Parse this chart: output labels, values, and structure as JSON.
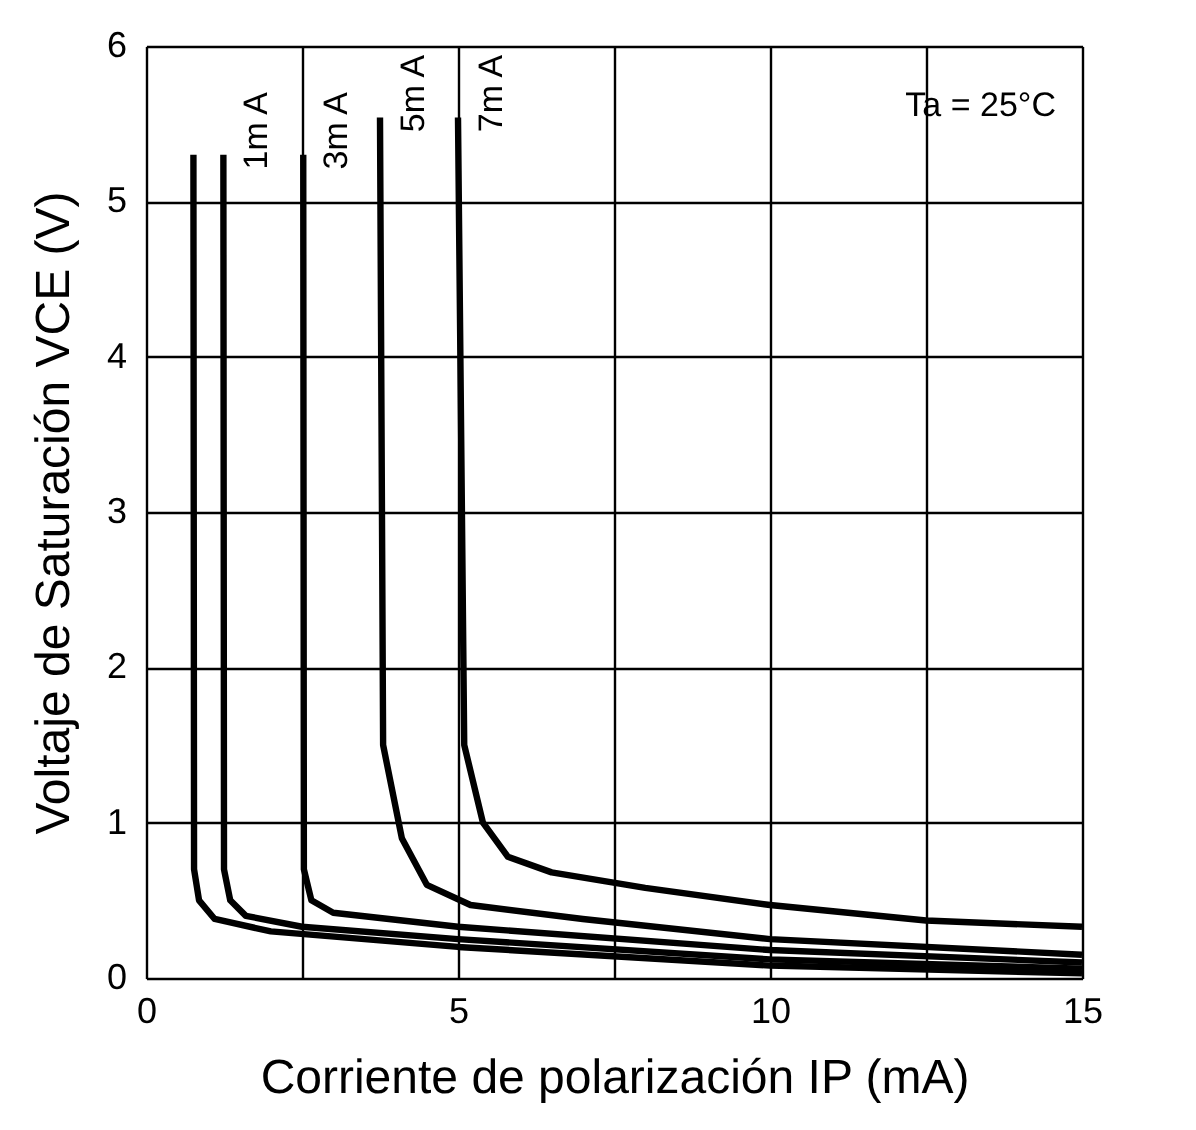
{
  "chart_data": {
    "type": "line",
    "xlabel": "Corriente de polarización IP (mA)",
    "ylabel": "Voltaje de Saturación VCE (V)",
    "annotations": [
      "Ta = 25°C"
    ],
    "xlim": [
      0,
      15
    ],
    "xticks": [
      0,
      {
        "value": 2.5,
        "label": null
      },
      5,
      {
        "value": 7.5,
        "label": null
      },
      10,
      {
        "value": 12.5,
        "label": null
      },
      15
    ],
    "ylim": [
      0,
      6
    ],
    "yticks": [
      0,
      1,
      2,
      3,
      4,
      5,
      6
    ],
    "grid": true,
    "legend": false,
    "marker": "none",
    "line_style": "solid",
    "series": [
      {
        "color": "#000000",
        "x": [
          0.76,
          0.77,
          0.85,
          1.1,
          2,
          5,
          10,
          15
        ],
        "values": [
          5.3,
          0.7,
          0.5,
          0.38,
          0.3,
          0.2,
          0.08,
          0.03
        ]
      },
      {
        "name": "1m A",
        "color": "#000000",
        "x": [
          1.24,
          1.25,
          1.35,
          1.6,
          2.5,
          5,
          10,
          15
        ],
        "values": [
          5.3,
          0.7,
          0.5,
          0.4,
          0.33,
          0.25,
          0.12,
          0.06
        ]
      },
      {
        "name": "3m A",
        "color": "#000000",
        "x": [
          2.52,
          2.53,
          2.65,
          3,
          5,
          10,
          15
        ],
        "values": [
          5.3,
          0.7,
          0.5,
          0.42,
          0.33,
          0.18,
          0.1
        ]
      },
      {
        "name": "5m A",
        "color": "#000000",
        "x": [
          3.75,
          3.8,
          4.1,
          4.5,
          5.2,
          7,
          10,
          15
        ],
        "values": [
          5.54,
          1.5,
          0.9,
          0.6,
          0.47,
          0.38,
          0.25,
          0.15
        ]
      },
      {
        "name": "7m A",
        "color": "#000000",
        "x": [
          5.0,
          5.1,
          5.4,
          5.8,
          6.5,
          8,
          10,
          12.5,
          15
        ],
        "values": [
          5.54,
          1.5,
          1.0,
          0.78,
          0.68,
          0.58,
          0.47,
          0.37,
          0.33
        ]
      }
    ]
  }
}
